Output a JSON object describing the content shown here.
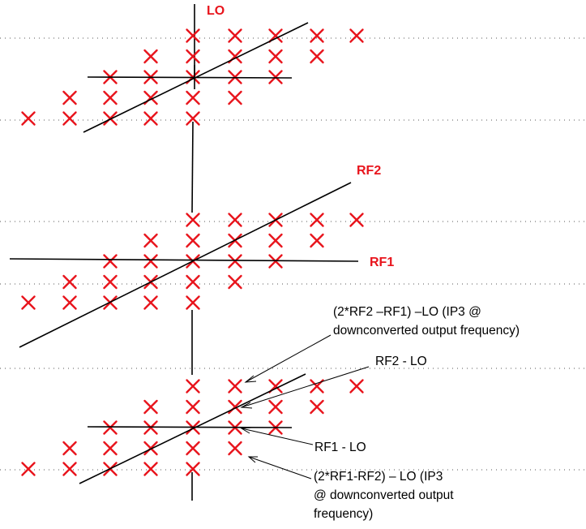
{
  "labels": {
    "lo": "LO",
    "rf2": "RF2",
    "rf1": "RF1",
    "ip3_high_line1": "(2*RF2 –RF1) –LO (IP3 @",
    "ip3_high_line2": "downconverted output frequency)",
    "rf2_minus_lo": "RF2 - LO",
    "rf1_minus_lo": "RF1 - LO",
    "ip3_low_line1": "(2*RF1-RF2) – LO (IP3",
    "ip3_low_line2": "@ downconverted output",
    "ip3_low_line3": "frequency)"
  },
  "colors": {
    "marker": "#e8141c",
    "label_red": "#e8141c",
    "line": "#000000",
    "grid_dots": "#555555"
  },
  "markers": {
    "symbol": "x-mark",
    "rows_per_lattice": 5,
    "lattice_count": 3
  }
}
